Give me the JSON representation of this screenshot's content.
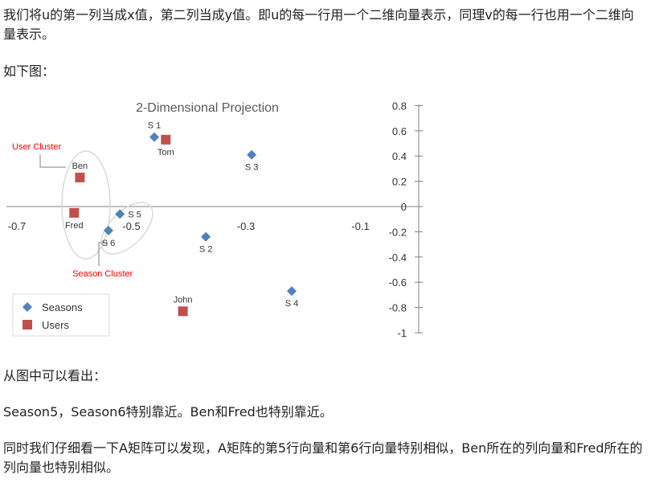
{
  "article": {
    "para1": "我们将u的第一列当成x值，第二列当成y值。即u的每一行用一个二维向量表示，同理v的每一行也用一个二维向量表示。",
    "para2": "如下图：",
    "para3": "从图中可以看出：",
    "para4": "Season5，Season6特别靠近。Ben和Fred也特别靠近。",
    "para5": "同时我们仔细看一下A矩阵可以发现，A矩阵的第5行向量和第6行向量特别相似，Ben所在的列向量和Fred所在的列向量也特别相似。"
  },
  "chart_data": {
    "type": "scatter",
    "title": "2-Dimensional Projection",
    "xlim": [
      -0.75,
      -0.05
    ],
    "ylim": [
      -1,
      0.8
    ],
    "x_ticks": [
      -0.7,
      -0.5,
      -0.3,
      -0.1
    ],
    "x_tick_labels": [
      "-0.7",
      "-0.5",
      "-0.3",
      "-0.1"
    ],
    "y_ticks": [
      0.8,
      0.6,
      0.4,
      0.2,
      0,
      -0.2,
      -0.4,
      -0.6,
      -0.8,
      -1
    ],
    "y_tick_labels": [
      "0.8",
      "0.6",
      "0.4",
      "0.2",
      "0",
      "-0.2",
      "-0.4",
      "-0.6",
      "-0.8",
      "-1"
    ],
    "series": [
      {
        "name": "Seasons",
        "marker": "diamond",
        "color": "#4f81bd",
        "points": [
          {
            "label": "S 1",
            "x": -0.46,
            "y": 0.55,
            "label_pos": "above"
          },
          {
            "label": "S 2",
            "x": -0.37,
            "y": -0.24,
            "label_pos": "below"
          },
          {
            "label": "S 3",
            "x": -0.29,
            "y": 0.41,
            "label_pos": "below"
          },
          {
            "label": "S 4",
            "x": -0.22,
            "y": -0.67,
            "label_pos": "below"
          },
          {
            "label": "S 5",
            "x": -0.52,
            "y": -0.06,
            "label_pos": "right"
          },
          {
            "label": "S 6",
            "x": -0.54,
            "y": -0.19,
            "label_pos": "below"
          }
        ]
      },
      {
        "name": "Users",
        "marker": "square",
        "color": "#c0504d",
        "points": [
          {
            "label": "Tom",
            "x": -0.44,
            "y": 0.53,
            "label_pos": "below"
          },
          {
            "label": "Ben",
            "x": -0.59,
            "y": 0.23,
            "label_pos": "above"
          },
          {
            "label": "Fred",
            "x": -0.6,
            "y": -0.05,
            "label_pos": "below"
          },
          {
            "label": "John",
            "x": -0.41,
            "y": -0.83,
            "label_pos": "above"
          }
        ]
      }
    ],
    "annotations": [
      {
        "text": "User Cluster",
        "color": "#ff0000"
      },
      {
        "text": "Season Cluster",
        "color": "#ff0000"
      }
    ],
    "legend": {
      "placement": "bottom-left",
      "entries": [
        "Seasons",
        "Users"
      ]
    },
    "grid": false
  }
}
